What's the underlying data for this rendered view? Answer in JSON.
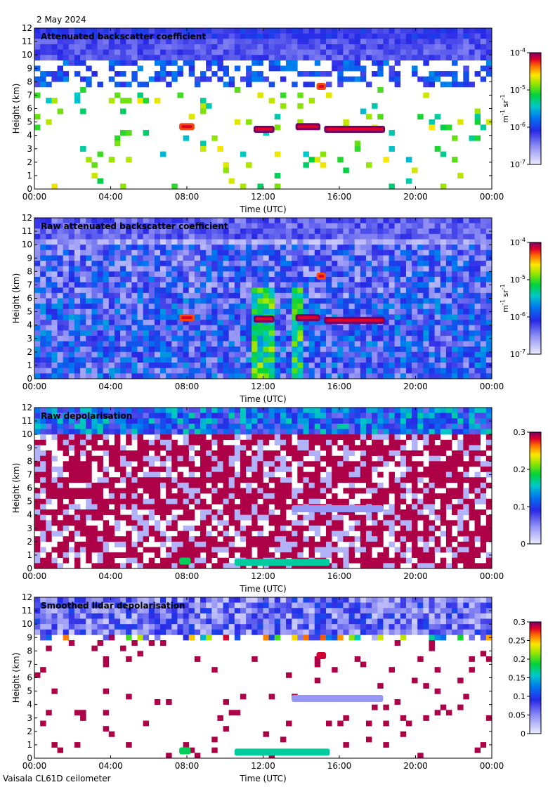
{
  "date": "2 May 2024",
  "instrument": "Vaisala CL61D ceilometer",
  "chart_data": [
    {
      "type": "heatmap",
      "title": "Attenuated backscatter coefficient",
      "xlabel": "Time (UTC)",
      "ylabel": "Height (km)",
      "x_ticks": [
        "00:00",
        "04:00",
        "08:00",
        "12:00",
        "16:00",
        "20:00",
        "00:00"
      ],
      "y_ticks": [
        "0",
        "1",
        "2",
        "3",
        "4",
        "5",
        "6",
        "7",
        "8",
        "9",
        "10",
        "11",
        "12"
      ],
      "ylim": [
        0,
        12
      ],
      "xlim_hours": [
        0,
        24
      ],
      "colorbar": {
        "scale": "log",
        "range": [
          1e-07,
          0.0001
        ],
        "ticks": [
          {
            "base": "10",
            "exp": "-4",
            "value": 0.0001
          },
          {
            "base": "10",
            "exp": "-5",
            "value": 1e-05
          },
          {
            "base": "10",
            "exp": "-6",
            "value": 1e-06
          },
          {
            "base": "10",
            "exp": "-7",
            "value": 1e-07
          }
        ],
        "unit_parts": {
          "m": "m",
          "m_exp": "-1",
          "sr": " sr",
          "sr_exp": "-1"
        }
      },
      "features": [
        {
          "kind": "cloud",
          "t0": 7.6,
          "t1": 8.4,
          "h": 4.6,
          "v": 0.9
        },
        {
          "kind": "cloud",
          "t0": 11.5,
          "t1": 12.6,
          "h": 4.4,
          "v": 1.0
        },
        {
          "kind": "cloud",
          "t0": 13.7,
          "t1": 15.0,
          "h": 4.6,
          "v": 1.0
        },
        {
          "kind": "cloud",
          "t0": 15.2,
          "t1": 18.4,
          "h": 4.4,
          "v": 1.0
        },
        {
          "kind": "cloud",
          "t0": 14.8,
          "t1": 15.3,
          "h": 7.6,
          "v": 0.9
        }
      ]
    },
    {
      "type": "heatmap",
      "title": "Raw attenuated backscatter coefficient",
      "xlabel": "Time (UTC)",
      "ylabel": "Height (km)",
      "x_ticks": [
        "00:00",
        "04:00",
        "08:00",
        "12:00",
        "16:00",
        "20:00",
        "00:00"
      ],
      "y_ticks": [
        "0",
        "1",
        "2",
        "3",
        "4",
        "5",
        "6",
        "7",
        "8",
        "9",
        "10",
        "11",
        "12"
      ],
      "ylim": [
        0,
        12
      ],
      "xlim_hours": [
        0,
        24
      ],
      "colorbar": {
        "scale": "log",
        "range": [
          1e-07,
          0.0001
        ],
        "ticks": [
          {
            "base": "10",
            "exp": "-4",
            "value": 0.0001
          },
          {
            "base": "10",
            "exp": "-5",
            "value": 1e-05
          },
          {
            "base": "10",
            "exp": "-6",
            "value": 1e-06
          },
          {
            "base": "10",
            "exp": "-7",
            "value": 1e-07
          }
        ],
        "unit_parts": {
          "m": "m",
          "m_exp": "-1",
          "sr": " sr",
          "sr_exp": "-1"
        }
      },
      "features": [
        {
          "kind": "cloud",
          "t0": 7.6,
          "t1": 8.4,
          "h": 4.5,
          "v": 0.9
        },
        {
          "kind": "cloud",
          "t0": 11.5,
          "t1": 12.6,
          "h": 4.4,
          "v": 1.0
        },
        {
          "kind": "cloud",
          "t0": 13.7,
          "t1": 15.0,
          "h": 4.5,
          "v": 1.0
        },
        {
          "kind": "cloud",
          "t0": 15.2,
          "t1": 18.4,
          "h": 4.3,
          "v": 1.0
        },
        {
          "kind": "cloud",
          "t0": 14.8,
          "t1": 15.3,
          "h": 7.6,
          "v": 0.9
        }
      ]
    },
    {
      "type": "heatmap",
      "title": "Raw depolarisation",
      "xlabel": "Time (UTC)",
      "ylabel": "Height (km)",
      "x_ticks": [
        "00:00",
        "04:00",
        "08:00",
        "12:00",
        "16:00",
        "20:00",
        "00:00"
      ],
      "y_ticks": [
        "0",
        "1",
        "2",
        "3",
        "4",
        "5",
        "6",
        "7",
        "8",
        "9",
        "10",
        "11",
        "12"
      ],
      "ylim": [
        0,
        12
      ],
      "xlim_hours": [
        0,
        24
      ],
      "colorbar": {
        "scale": "linear",
        "range": [
          0,
          0.3
        ],
        "ticks": [
          {
            "label": "0.3",
            "value": 0.3
          },
          {
            "label": "0.2",
            "value": 0.2
          },
          {
            "label": "0.1",
            "value": 0.1
          },
          {
            "label": "0",
            "value": 0
          }
        ]
      },
      "features": [
        {
          "kind": "depol",
          "t0": 7.6,
          "t1": 8.2,
          "h": 0.5,
          "v": 0.6
        },
        {
          "kind": "depol",
          "t0": 10.5,
          "t1": 15.5,
          "h": 0.4,
          "v": 0.55
        },
        {
          "kind": "depol",
          "t0": 13.5,
          "t1": 18.3,
          "h": 4.4,
          "v": 0.15
        }
      ]
    },
    {
      "type": "heatmap",
      "title": "Smoothed lidar depolarisation",
      "xlabel": "Time (UTC)",
      "ylabel": "Height (km)",
      "x_ticks": [
        "00:00",
        "04:00",
        "08:00",
        "12:00",
        "16:00",
        "20:00",
        "00:00"
      ],
      "y_ticks": [
        "0",
        "1",
        "2",
        "3",
        "4",
        "5",
        "6",
        "7",
        "8",
        "9",
        "10",
        "11",
        "12"
      ],
      "ylim": [
        0,
        12
      ],
      "xlim_hours": [
        0,
        24
      ],
      "colorbar": {
        "scale": "linear",
        "range": [
          0,
          0.3
        ],
        "ticks": [
          {
            "label": "0.3",
            "value": 0.3
          },
          {
            "label": "0.25",
            "value": 0.25
          },
          {
            "label": "0.2",
            "value": 0.2
          },
          {
            "label": "0.15",
            "value": 0.15
          },
          {
            "label": "0.1",
            "value": 0.1
          },
          {
            "label": "0.05",
            "value": 0.05
          },
          {
            "label": "0",
            "value": 0
          }
        ]
      },
      "features": [
        {
          "kind": "depol",
          "t0": 7.6,
          "t1": 8.2,
          "h": 0.5,
          "v": 0.6
        },
        {
          "kind": "depol",
          "t0": 10.5,
          "t1": 15.5,
          "h": 0.4,
          "v": 0.55
        },
        {
          "kind": "depol",
          "t0": 13.5,
          "t1": 18.3,
          "h": 4.4,
          "v": 0.15
        },
        {
          "kind": "depol",
          "t0": 14.8,
          "t1": 15.3,
          "h": 7.6,
          "v": 0.95
        }
      ]
    }
  ]
}
